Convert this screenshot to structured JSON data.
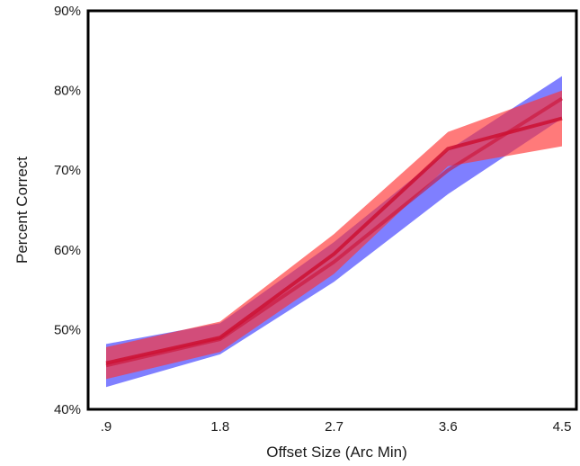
{
  "chart_data": {
    "type": "line",
    "title": "",
    "xlabel": "Offset Size (Arc Min)",
    "ylabel": "Percent Correct",
    "x": [
      0.9,
      1.8,
      2.7,
      3.6,
      4.5
    ],
    "x_tick_labels": [
      ".9",
      "1.8",
      "2.7",
      "3.6",
      "4.5"
    ],
    "ylim": [
      40,
      90
    ],
    "y_ticks": [
      40,
      50,
      60,
      70,
      80,
      90
    ],
    "y_tick_labels": [
      "40%",
      "50%",
      "60%",
      "70%",
      "80%",
      "90%"
    ],
    "grid": false,
    "legend": "none",
    "series": [
      {
        "color": "#3a3aff",
        "values": [
          45.5,
          48.8,
          58.5,
          70.0,
          79.0
        ],
        "lower": [
          42.8,
          46.9,
          56.0,
          67.0,
          76.5
        ],
        "upper": [
          48.2,
          50.8,
          61.0,
          72.5,
          81.8
        ]
      },
      {
        "color": "#ff3333",
        "values": [
          45.8,
          49.0,
          59.5,
          72.7,
          76.5
        ],
        "lower": [
          43.8,
          47.2,
          57.0,
          70.5,
          73.0
        ],
        "upper": [
          47.8,
          51.0,
          62.0,
          74.8,
          80.0
        ]
      }
    ],
    "line_color": "#cc1133"
  }
}
